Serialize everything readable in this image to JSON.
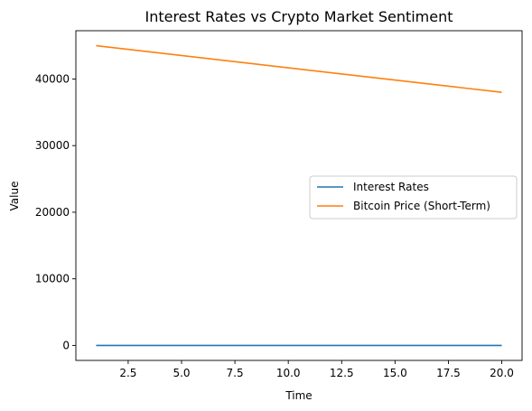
{
  "chart_data": {
    "type": "line",
    "title": "Interest Rates vs Crypto Market Sentiment",
    "xlabel": "Time",
    "ylabel": "Value",
    "xlim": [
      0.05,
      20.95
    ],
    "ylim": [
      -2250,
      47250
    ],
    "xticks": [
      2.5,
      5.0,
      7.5,
      10.0,
      12.5,
      15.0,
      17.5,
      20.0
    ],
    "xtick_labels": [
      "2.5",
      "5.0",
      "7.5",
      "10.0",
      "12.5",
      "15.0",
      "17.5",
      "20.0"
    ],
    "yticks": [
      0,
      10000,
      20000,
      30000,
      40000
    ],
    "ytick_labels": [
      "0",
      "10000",
      "20000",
      "30000",
      "40000"
    ],
    "grid": false,
    "legend_position": "center-right",
    "series": [
      {
        "name": "Interest Rates",
        "color": "#1f77b4",
        "x": [
          1,
          20
        ],
        "y": [
          2.5,
          2.5
        ]
      },
      {
        "name": "Bitcoin Price (Short-Term)",
        "color": "#ff7f0e",
        "x": [
          1,
          20
        ],
        "y": [
          45000,
          38000
        ]
      }
    ]
  }
}
